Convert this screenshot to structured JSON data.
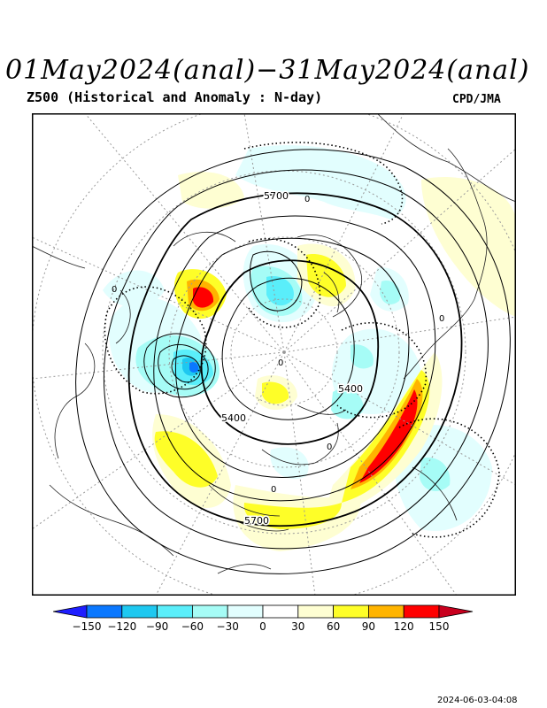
{
  "header": {
    "title": "01May2024(anal)−31May2024(anal)",
    "subtitle": "Z500 (Historical and Anomaly : N-day)",
    "agency": "CPD/JMA"
  },
  "map": {
    "contour_labels": [
      "5700",
      "5700",
      "5400",
      "5400",
      "0",
      "0",
      "0",
      "0",
      "0",
      "0"
    ]
  },
  "legend": {
    "ticks": [
      "−150",
      "−120",
      "−90",
      "−60",
      "−30",
      "0",
      "30",
      "60",
      "90",
      "120",
      "150"
    ],
    "colors": [
      "#1e1eff",
      "#0a78ff",
      "#1ec8f0",
      "#5aeefa",
      "#a6fcf6",
      "#e2fefe",
      "#ffffff",
      "#fefed2",
      "#fefe28",
      "#ffb400",
      "#ff0000",
      "#c8001e"
    ]
  },
  "footer": {
    "timestamp": "2024-06-03-04:08"
  }
}
